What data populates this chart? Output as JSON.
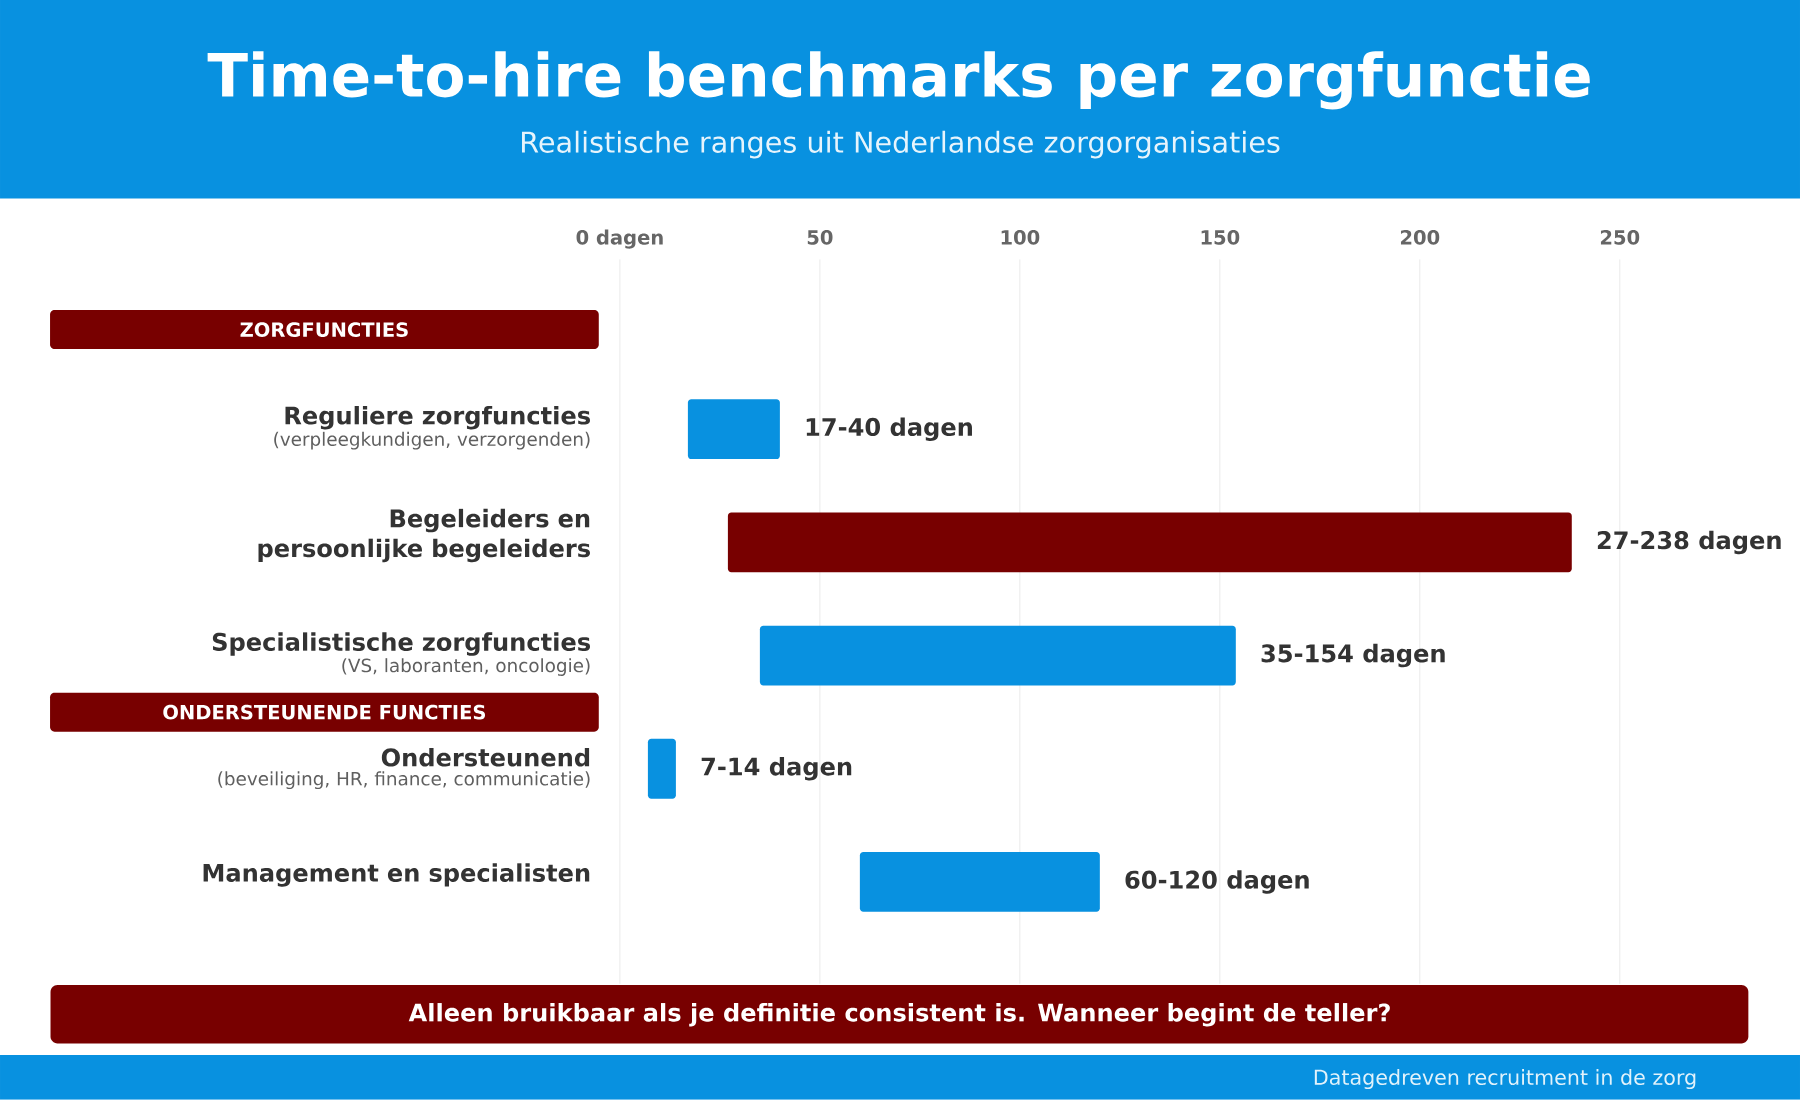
{
  "chart_data": {
    "type": "bar",
    "orientation": "horizontal",
    "title": "Time-to-hire benchmarks per zorgfunctie",
    "subtitle": "Realistische ranges uit Nederlandse zorgorganisaties",
    "categories": [
      "Reguliere zorgfuncties",
      "Begeleiders en persoonlijke begeleiders",
      "Specialistische zorgfuncties",
      "Ondersteunend",
      "Management en specialisten"
    ],
    "base": [
      17,
      27,
      35,
      7,
      60
    ],
    "values": [
      23,
      211,
      119,
      7,
      60
    ],
    "colors": [
      "#0891e0",
      "#780000",
      "#0891e0",
      "#0891e0",
      "#0891e0"
    ],
    "value_labels": [
      "17-40 dagen",
      "27-238 dagen",
      "35-154 dagen",
      "7-14 dagen",
      "60-120 dagen"
    ],
    "xlim": [
      0,
      250
    ],
    "xticks": [
      {
        "value": 0,
        "label": "0 dagen"
      },
      50,
      100,
      150,
      200,
      250
    ],
    "grid": "x",
    "annotations": [
      "ZORGFUNCTIES",
      "(verpleegkundigen, verzorgenden)",
      "(VS, laboranten, oncologie)",
      "ONDERSTEUNENDE FUNCTIES",
      "(beveiliging, HR, finance, communicatie)",
      "Alleen bruikbaar als je definitie consistent is. Wanneer begint de teller?",
      "Datagedreven recruitment in de zorg"
    ]
  }
}
